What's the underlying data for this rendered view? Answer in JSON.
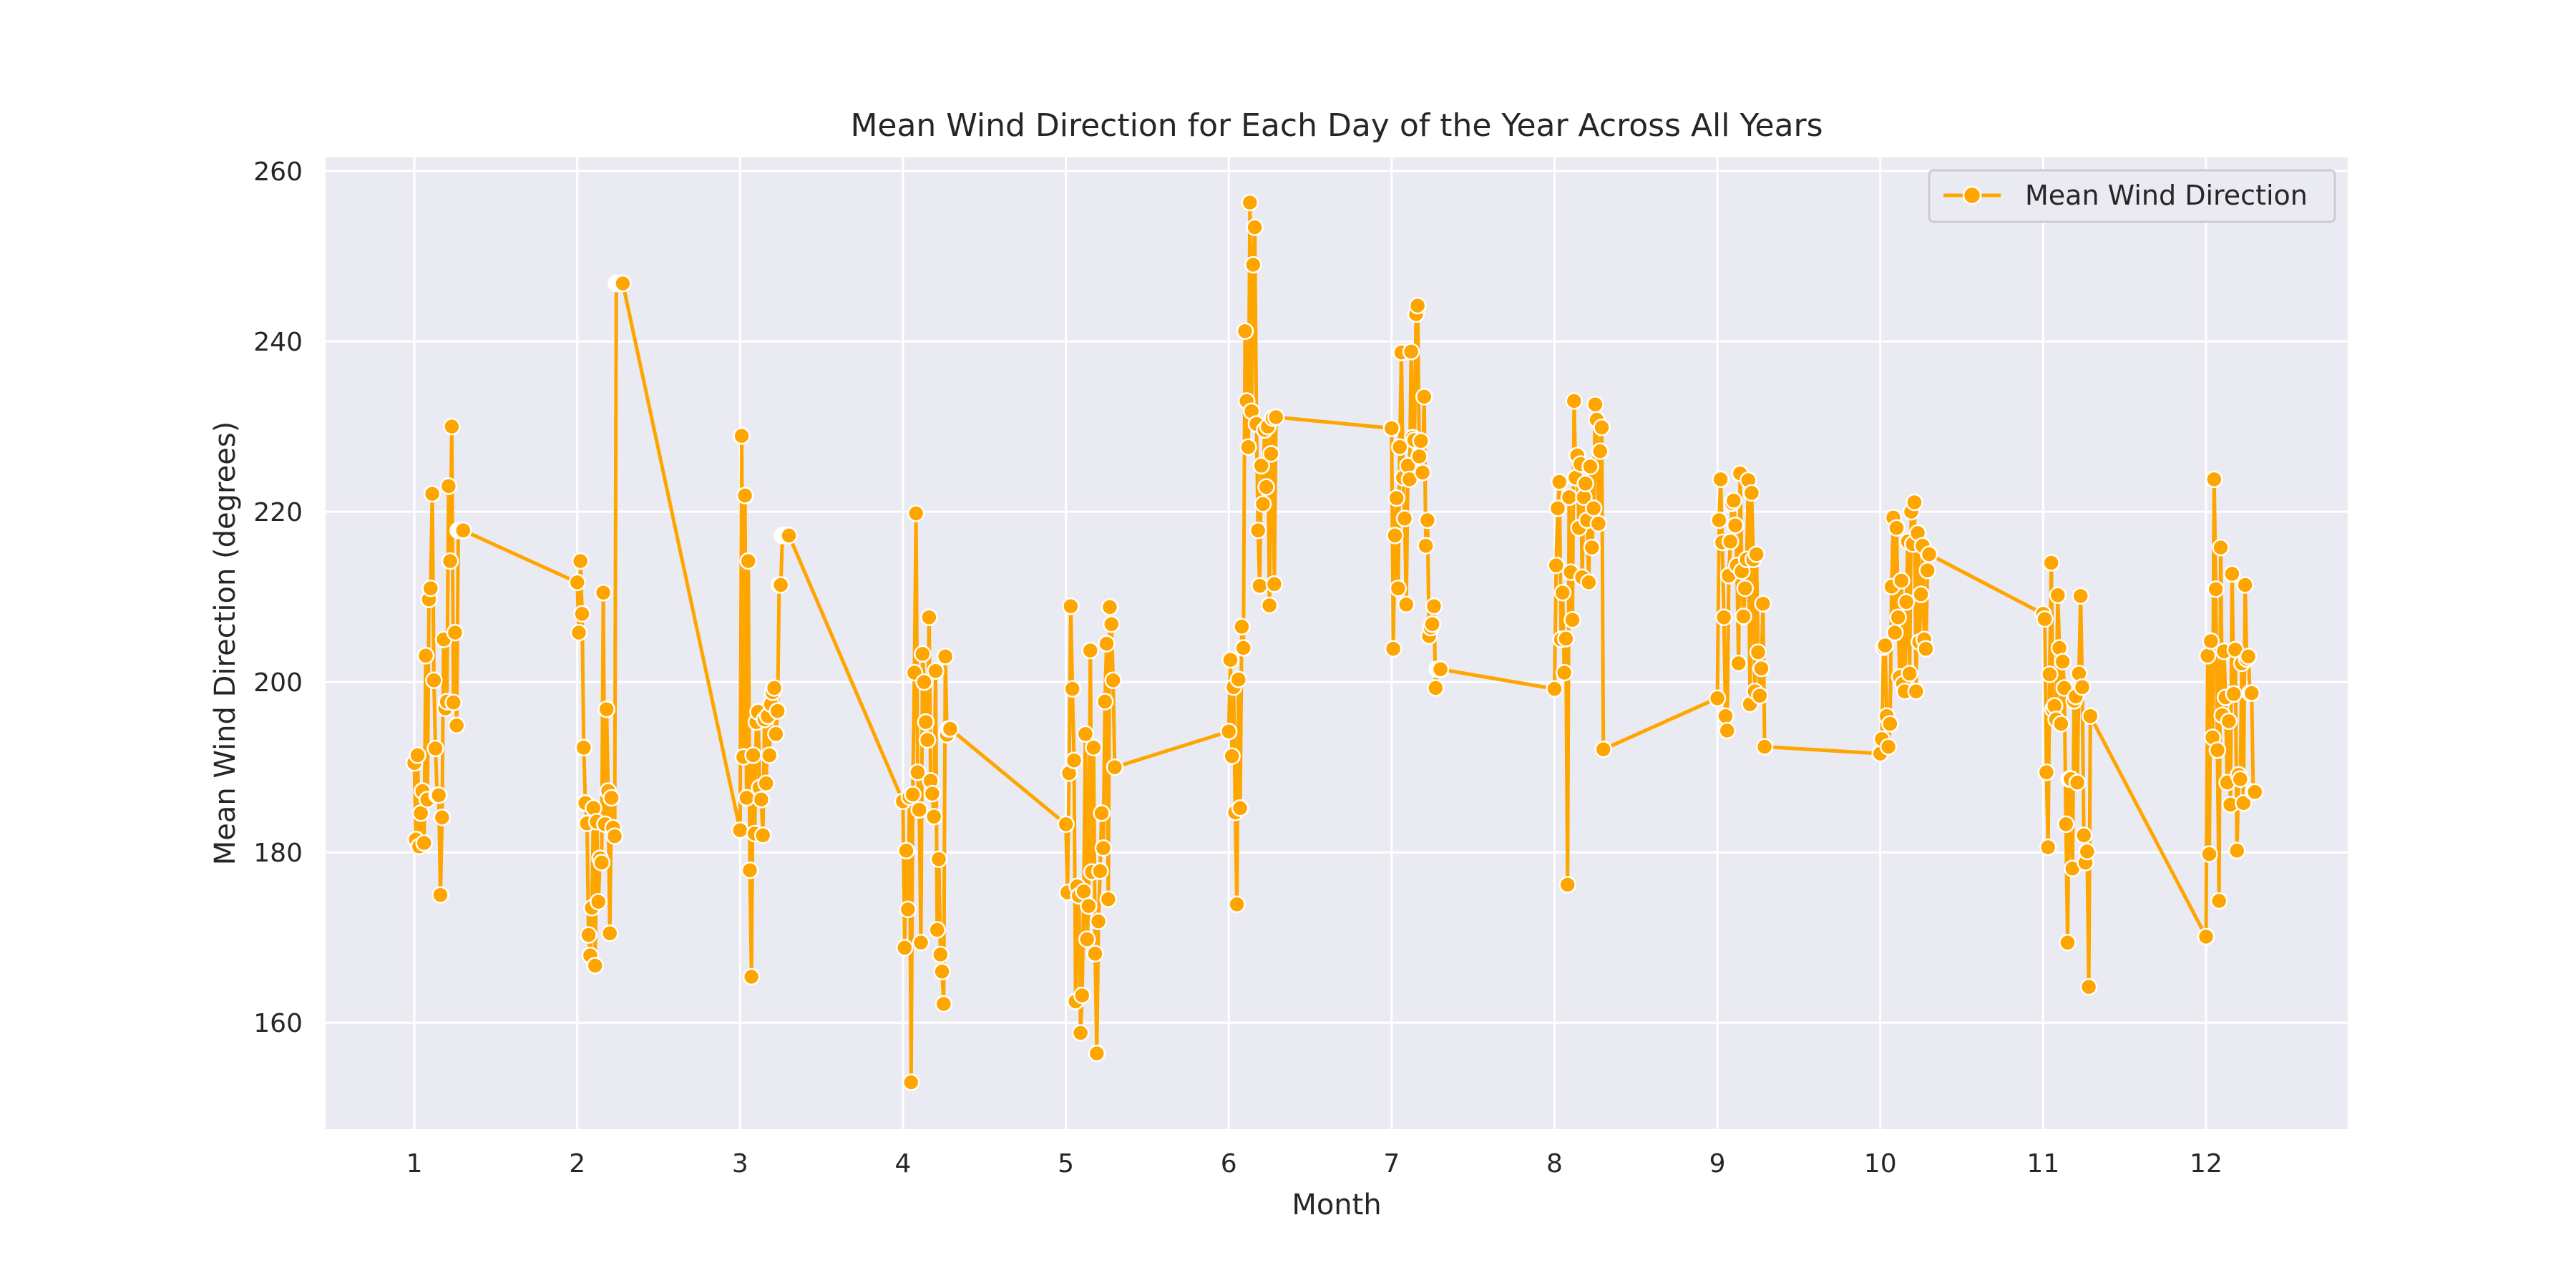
{
  "chart_data": {
    "type": "line",
    "title": "Mean Wind Direction for Each Day of the Year Across All Years",
    "xlabel": "Month",
    "ylabel": "Mean Wind Direction (degrees)",
    "xlim": [
      0.455,
      12.87
    ],
    "ylim": [
      147.5,
      261.6
    ],
    "xticks": [
      1,
      2,
      3,
      4,
      5,
      6,
      7,
      8,
      9,
      10,
      11,
      12
    ],
    "xtick_labels": [
      "1",
      "2",
      "3",
      "4",
      "5",
      "6",
      "7",
      "8",
      "9",
      "10",
      "11",
      "12"
    ],
    "yticks": [
      160,
      180,
      200,
      220,
      240,
      260
    ],
    "ytick_labels": [
      "160",
      "180",
      "200",
      "220",
      "240",
      "260"
    ],
    "grid": true,
    "legend": {
      "position": "top-right",
      "entries": [
        "Mean Wind Direction"
      ]
    },
    "colors": {
      "line": "#FFA500",
      "marker_edge": "#ffffff",
      "background": "#EAEAF2",
      "grid": "#ffffff"
    },
    "series": [
      {
        "name": "Mean Wind Direction",
        "x_encoding": "month + (day - 1) / 100",
        "x": [
          1.0,
          1.01,
          1.02,
          1.03,
          1.04,
          1.05,
          1.06,
          1.07,
          1.08,
          1.09,
          1.1,
          1.11,
          1.12,
          1.13,
          1.14,
          1.15,
          1.16,
          1.17,
          1.18,
          1.19,
          1.2,
          1.21,
          1.22,
          1.23,
          1.24,
          1.25,
          1.26,
          1.27,
          1.28,
          1.29,
          1.3,
          2.0,
          2.01,
          2.02,
          2.03,
          2.04,
          2.05,
          2.06,
          2.07,
          2.08,
          2.09,
          2.1,
          2.11,
          2.12,
          2.13,
          2.14,
          2.15,
          2.16,
          2.17,
          2.18,
          2.19,
          2.2,
          2.21,
          2.22,
          2.23,
          2.24,
          2.25,
          2.26,
          2.27,
          2.28,
          3.0,
          3.01,
          3.02,
          3.03,
          3.04,
          3.05,
          3.06,
          3.07,
          3.08,
          3.09,
          3.1,
          3.11,
          3.12,
          3.13,
          3.14,
          3.15,
          3.16,
          3.17,
          3.18,
          3.19,
          3.2,
          3.21,
          3.22,
          3.23,
          3.24,
          3.25,
          3.26,
          3.27,
          3.28,
          3.29,
          3.3,
          4.0,
          4.01,
          4.02,
          4.03,
          4.04,
          4.05,
          4.06,
          4.07,
          4.08,
          4.09,
          4.1,
          4.11,
          4.12,
          4.13,
          4.14,
          4.15,
          4.16,
          4.17,
          4.18,
          4.19,
          4.2,
          4.21,
          4.22,
          4.23,
          4.24,
          4.25,
          4.26,
          4.27,
          4.28,
          4.29,
          5.0,
          5.01,
          5.02,
          5.03,
          5.04,
          5.05,
          5.06,
          5.07,
          5.08,
          5.09,
          5.1,
          5.11,
          5.12,
          5.13,
          5.14,
          5.15,
          5.16,
          5.17,
          5.18,
          5.19,
          5.2,
          5.21,
          5.22,
          5.23,
          5.24,
          5.25,
          5.26,
          5.27,
          5.28,
          5.29,
          5.3,
          6.0,
          6.01,
          6.02,
          6.03,
          6.04,
          6.05,
          6.06,
          6.07,
          6.08,
          6.09,
          6.1,
          6.11,
          6.12,
          6.13,
          6.14,
          6.15,
          6.16,
          6.17,
          6.18,
          6.19,
          6.2,
          6.21,
          6.22,
          6.23,
          6.24,
          6.25,
          6.26,
          6.27,
          6.28,
          6.29,
          7.0,
          7.01,
          7.02,
          7.03,
          7.04,
          7.05,
          7.06,
          7.07,
          7.08,
          7.09,
          7.1,
          7.11,
          7.12,
          7.13,
          7.14,
          7.15,
          7.16,
          7.17,
          7.18,
          7.19,
          7.2,
          7.21,
          7.22,
          7.23,
          7.24,
          7.25,
          7.26,
          7.27,
          7.28,
          7.29,
          7.3,
          8.0,
          8.01,
          8.02,
          8.03,
          8.04,
          8.05,
          8.06,
          8.07,
          8.08,
          8.09,
          8.1,
          8.11,
          8.12,
          8.13,
          8.14,
          8.15,
          8.16,
          8.17,
          8.18,
          8.19,
          8.2,
          8.21,
          8.22,
          8.23,
          8.24,
          8.25,
          8.26,
          8.27,
          8.28,
          8.29,
          8.3,
          9.0,
          9.01,
          9.02,
          9.03,
          9.04,
          9.05,
          9.06,
          9.07,
          9.08,
          9.09,
          9.1,
          9.11,
          9.12,
          9.13,
          9.14,
          9.15,
          9.16,
          9.17,
          9.18,
          9.19,
          9.2,
          9.21,
          9.22,
          9.23,
          9.24,
          9.25,
          9.26,
          9.27,
          9.28,
          9.29,
          10.0,
          10.01,
          10.02,
          10.03,
          10.04,
          10.05,
          10.06,
          10.07,
          10.08,
          10.09,
          10.1,
          10.11,
          10.12,
          10.13,
          10.14,
          10.15,
          10.16,
          10.17,
          10.18,
          10.19,
          10.2,
          10.21,
          10.22,
          10.23,
          10.24,
          10.25,
          10.26,
          10.27,
          10.28,
          10.29,
          10.3,
          11.0,
          11.01,
          11.02,
          11.03,
          11.04,
          11.05,
          11.06,
          11.07,
          11.08,
          11.09,
          11.1,
          11.11,
          11.12,
          11.13,
          11.14,
          11.15,
          11.16,
          11.17,
          11.18,
          11.19,
          11.2,
          11.21,
          11.22,
          11.23,
          11.24,
          11.25,
          11.26,
          11.27,
          11.28,
          11.29,
          12.0,
          12.01,
          12.02,
          12.03,
          12.04,
          12.05,
          12.06,
          12.07,
          12.08,
          12.09,
          12.1,
          12.11,
          12.12,
          12.13,
          12.14,
          12.15,
          12.16,
          12.17,
          12.18,
          12.19,
          12.2,
          12.21,
          12.22,
          12.23,
          12.24,
          12.25,
          12.26,
          12.27,
          12.28,
          12.29,
          12.3
        ],
        "y": [
          190.5,
          181.5,
          191.4,
          180.7,
          184.6,
          187.2,
          181.1,
          203.1,
          186.2,
          209.7,
          211.0,
          222.1,
          200.2,
          192.2,
          186.7,
          186.7,
          175.0,
          184.1,
          205.0,
          196.9,
          197.7,
          223.0,
          214.2,
          230.0,
          197.6,
          205.8,
          194.9,
          217.8,
          217.8,
          217.8,
          217.8,
          211.7,
          205.8,
          214.2,
          208.0,
          192.3,
          185.8,
          183.4,
          170.3,
          167.9,
          173.5,
          185.2,
          166.7,
          183.6,
          174.2,
          179.3,
          178.8,
          210.5,
          183.3,
          196.8,
          187.2,
          170.5,
          186.4,
          182.9,
          181.9,
          246.8,
          246.8,
          246.8,
          246.8,
          246.8,
          182.6,
          228.9,
          191.2,
          221.9,
          186.4,
          214.2,
          177.9,
          165.4,
          191.4,
          182.2,
          195.3,
          196.5,
          187.6,
          186.2,
          182.0,
          195.6,
          188.1,
          196.0,
          191.4,
          197.4,
          198.8,
          199.3,
          193.9,
          196.6,
          211.4,
          211.4,
          217.2,
          217.2,
          217.2,
          217.2,
          217.2,
          186.0,
          168.8,
          180.2,
          173.3,
          186.5,
          153.0,
          186.8,
          201.1,
          219.8,
          189.4,
          185.0,
          169.4,
          203.3,
          200.0,
          195.3,
          193.2,
          207.6,
          188.4,
          186.9,
          184.2,
          201.3,
          170.9,
          179.2,
          168.0,
          166.0,
          162.2,
          203.0,
          193.8,
          194.5,
          194.5,
          183.3,
          175.3,
          189.3,
          208.9,
          199.2,
          190.8,
          162.5,
          176.0,
          174.9,
          158.8,
          163.2,
          175.4,
          193.9,
          169.8,
          173.7,
          203.7,
          177.7,
          192.3,
          168.1,
          156.4,
          171.9,
          177.8,
          184.6,
          180.5,
          197.7,
          204.5,
          174.5,
          208.8,
          206.8,
          200.2,
          190.0,
          194.2,
          202.6,
          191.3,
          199.4,
          184.7,
          173.9,
          200.3,
          185.2,
          206.5,
          204.0,
          241.2,
          233.0,
          227.6,
          256.3,
          231.8,
          249.0,
          253.4,
          230.3,
          217.8,
          211.3,
          225.4,
          220.9,
          229.6,
          222.9,
          230.0,
          209.0,
          226.8,
          231.0,
          211.5,
          231.1,
          229.8,
          203.9,
          217.2,
          221.6,
          211.0,
          227.6,
          238.7,
          224.0,
          219.2,
          209.1,
          225.4,
          223.8,
          238.8,
          228.7,
          228.4,
          243.2,
          244.2,
          226.5,
          228.3,
          224.6,
          233.5,
          216.0,
          219.0,
          205.4,
          206.4,
          206.8,
          208.9,
          199.3,
          201.5,
          201.5,
          201.5,
          199.2,
          213.7,
          220.4,
          223.5,
          205.0,
          210.5,
          201.1,
          205.1,
          176.2,
          221.7,
          212.9,
          207.3,
          233.0,
          224.0,
          226.6,
          218.1,
          225.6,
          212.3,
          221.7,
          223.3,
          219.0,
          211.7,
          225.3,
          215.8,
          220.4,
          232.6,
          230.8,
          218.6,
          227.1,
          229.9,
          192.1,
          198.1,
          219.0,
          223.8,
          216.4,
          207.6,
          196.0,
          194.3,
          212.5,
          216.5,
          221.0,
          221.3,
          218.4,
          213.7,
          202.2,
          224.5,
          213.0,
          207.7,
          211.0,
          214.4,
          223.7,
          197.4,
          222.2,
          214.4,
          198.9,
          215.0,
          203.5,
          198.4,
          201.6,
          209.2,
          192.4,
          191.6,
          193.3,
          204.1,
          204.3,
          196.0,
          192.4,
          195.1,
          211.2,
          219.3,
          205.8,
          218.1,
          207.6,
          200.6,
          211.9,
          199.8,
          198.9,
          209.4,
          216.5,
          201.0,
          220.0,
          216.2,
          221.1,
          198.9,
          217.5,
          204.7,
          210.3,
          216.0,
          205.0,
          203.9,
          213.1,
          215.0,
          208.0,
          207.4,
          189.4,
          180.6,
          200.9,
          214.0,
          196.8,
          197.2,
          195.6,
          210.2,
          204.0,
          195.1,
          202.4,
          199.3,
          183.3,
          169.4,
          188.6,
          188.6,
          178.1,
          197.8,
          198.3,
          188.2,
          201.0,
          210.1,
          199.4,
          182.0,
          178.8,
          180.1,
          164.2,
          196.0,
          170.1,
          203.1,
          179.8,
          204.8,
          193.5,
          223.8,
          210.9,
          192.0,
          174.3,
          215.8,
          196.1,
          203.6,
          198.2,
          188.2,
          195.4,
          185.6,
          212.7,
          198.6,
          203.8,
          180.2,
          189.1,
          188.6,
          202.2,
          185.8,
          211.4,
          202.7,
          203.0,
          198.7,
          198.7,
          187.1,
          187.1
        ]
      }
    ]
  }
}
